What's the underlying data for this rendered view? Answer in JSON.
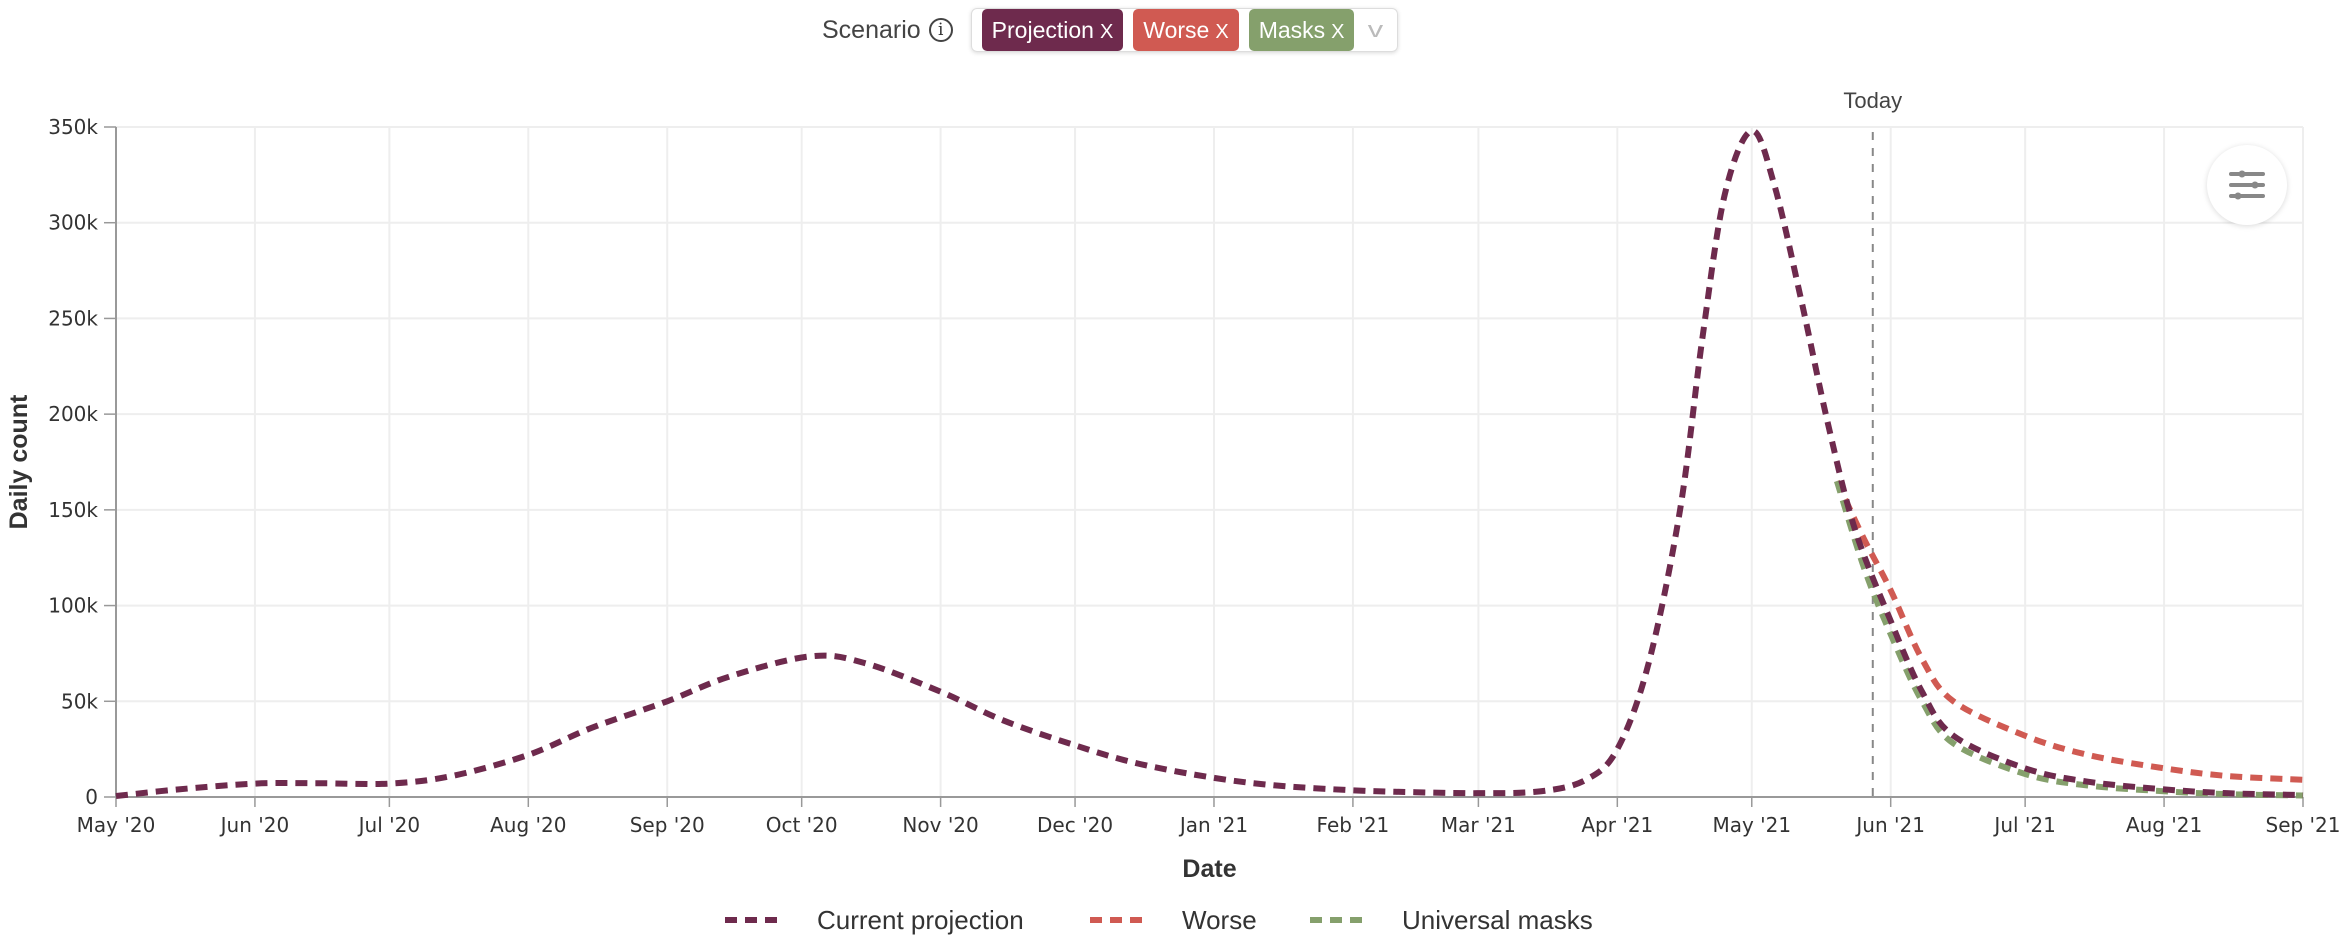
{
  "scenario": {
    "label": "Scenario",
    "info_icon": "i",
    "chips": [
      {
        "label": "Projection",
        "color": "#6e2a4d"
      },
      {
        "label": "Worse",
        "color": "#d05a52"
      },
      {
        "label": "Masks",
        "color": "#85a06c"
      }
    ],
    "remove_glyph": "X",
    "caret": "v"
  },
  "chart_data": {
    "type": "line",
    "xlabel": "Date",
    "ylabel": "Daily count",
    "ylim": [
      0,
      350000
    ],
    "xlim": [
      "2020-05-01",
      "2021-09-01"
    ],
    "yticks": [
      0,
      50000,
      100000,
      150000,
      200000,
      250000,
      300000,
      350000
    ],
    "ytick_labels": [
      "0",
      "50k",
      "100k",
      "150k",
      "200k",
      "250k",
      "300k",
      "350k"
    ],
    "xticks": [
      "2020-05-01",
      "2020-06-01",
      "2020-07-01",
      "2020-08-01",
      "2020-09-01",
      "2020-10-01",
      "2020-11-01",
      "2020-12-01",
      "2021-01-01",
      "2021-02-01",
      "2021-03-01",
      "2021-04-01",
      "2021-05-01",
      "2021-06-01",
      "2021-07-01",
      "2021-08-01",
      "2021-09-01"
    ],
    "xtick_labels": [
      "May '20",
      "Jun '20",
      "Jul '20",
      "Aug '20",
      "Sep '20",
      "Oct '20",
      "Nov '20",
      "Dec '20",
      "Jan '21",
      "Feb '21",
      "Mar '21",
      "Apr '21",
      "May '21",
      "Jun '21",
      "Jul '21",
      "Aug '21",
      "Sep '21"
    ],
    "grid": true,
    "today": {
      "label": "Today",
      "date": "2021-05-28"
    },
    "legend_position": "bottom",
    "series": [
      {
        "name": "Current projection",
        "color": "#6e2a4d",
        "points": [
          [
            "2020-05-01",
            500
          ],
          [
            "2020-05-15",
            4000
          ],
          [
            "2020-06-01",
            7000
          ],
          [
            "2020-06-15",
            7200
          ],
          [
            "2020-07-01",
            7000
          ],
          [
            "2020-07-15",
            11000
          ],
          [
            "2020-08-01",
            22000
          ],
          [
            "2020-08-15",
            36000
          ],
          [
            "2020-09-01",
            50000
          ],
          [
            "2020-09-15",
            63000
          ],
          [
            "2020-10-03",
            73500
          ],
          [
            "2020-10-15",
            70000
          ],
          [
            "2020-11-01",
            55000
          ],
          [
            "2020-11-15",
            40000
          ],
          [
            "2020-12-01",
            27000
          ],
          [
            "2020-12-15",
            17500
          ],
          [
            "2021-01-01",
            10000
          ],
          [
            "2021-01-15",
            6000
          ],
          [
            "2021-02-01",
            3500
          ],
          [
            "2021-02-15",
            2500
          ],
          [
            "2021-03-01",
            2000
          ],
          [
            "2021-03-15",
            3000
          ],
          [
            "2021-03-25",
            9000
          ],
          [
            "2021-04-01",
            25000
          ],
          [
            "2021-04-08",
            70000
          ],
          [
            "2021-04-15",
            150000
          ],
          [
            "2021-04-20",
            240000
          ],
          [
            "2021-04-25",
            315000
          ],
          [
            "2021-05-01",
            348000
          ],
          [
            "2021-05-06",
            320000
          ],
          [
            "2021-05-12",
            260000
          ],
          [
            "2021-05-18",
            195000
          ],
          [
            "2021-05-24",
            140000
          ],
          [
            "2021-06-01",
            92000
          ],
          [
            "2021-06-08",
            55000
          ],
          [
            "2021-06-15",
            32000
          ],
          [
            "2021-07-01",
            15000
          ],
          [
            "2021-07-15",
            8000
          ],
          [
            "2021-08-01",
            4000
          ],
          [
            "2021-08-15",
            2000
          ],
          [
            "2021-09-01",
            1000
          ]
        ]
      },
      {
        "name": "Worse",
        "color": "#d05a52",
        "points": [
          [
            "2021-05-20",
            165000
          ],
          [
            "2021-05-26",
            135000
          ],
          [
            "2021-06-01",
            108000
          ],
          [
            "2021-06-08",
            72000
          ],
          [
            "2021-06-15",
            50000
          ],
          [
            "2021-07-01",
            32000
          ],
          [
            "2021-07-15",
            22000
          ],
          [
            "2021-08-01",
            15000
          ],
          [
            "2021-08-15",
            11000
          ],
          [
            "2021-09-01",
            9000
          ]
        ]
      },
      {
        "name": "Universal masks",
        "color": "#85a06c",
        "points": [
          [
            "2021-05-20",
            165000
          ],
          [
            "2021-05-26",
            120000
          ],
          [
            "2021-06-01",
            85000
          ],
          [
            "2021-06-08",
            50000
          ],
          [
            "2021-06-15",
            28000
          ],
          [
            "2021-07-01",
            12000
          ],
          [
            "2021-07-15",
            6000
          ],
          [
            "2021-08-01",
            3000
          ],
          [
            "2021-08-15",
            1500
          ],
          [
            "2021-09-01",
            800
          ]
        ]
      }
    ]
  }
}
